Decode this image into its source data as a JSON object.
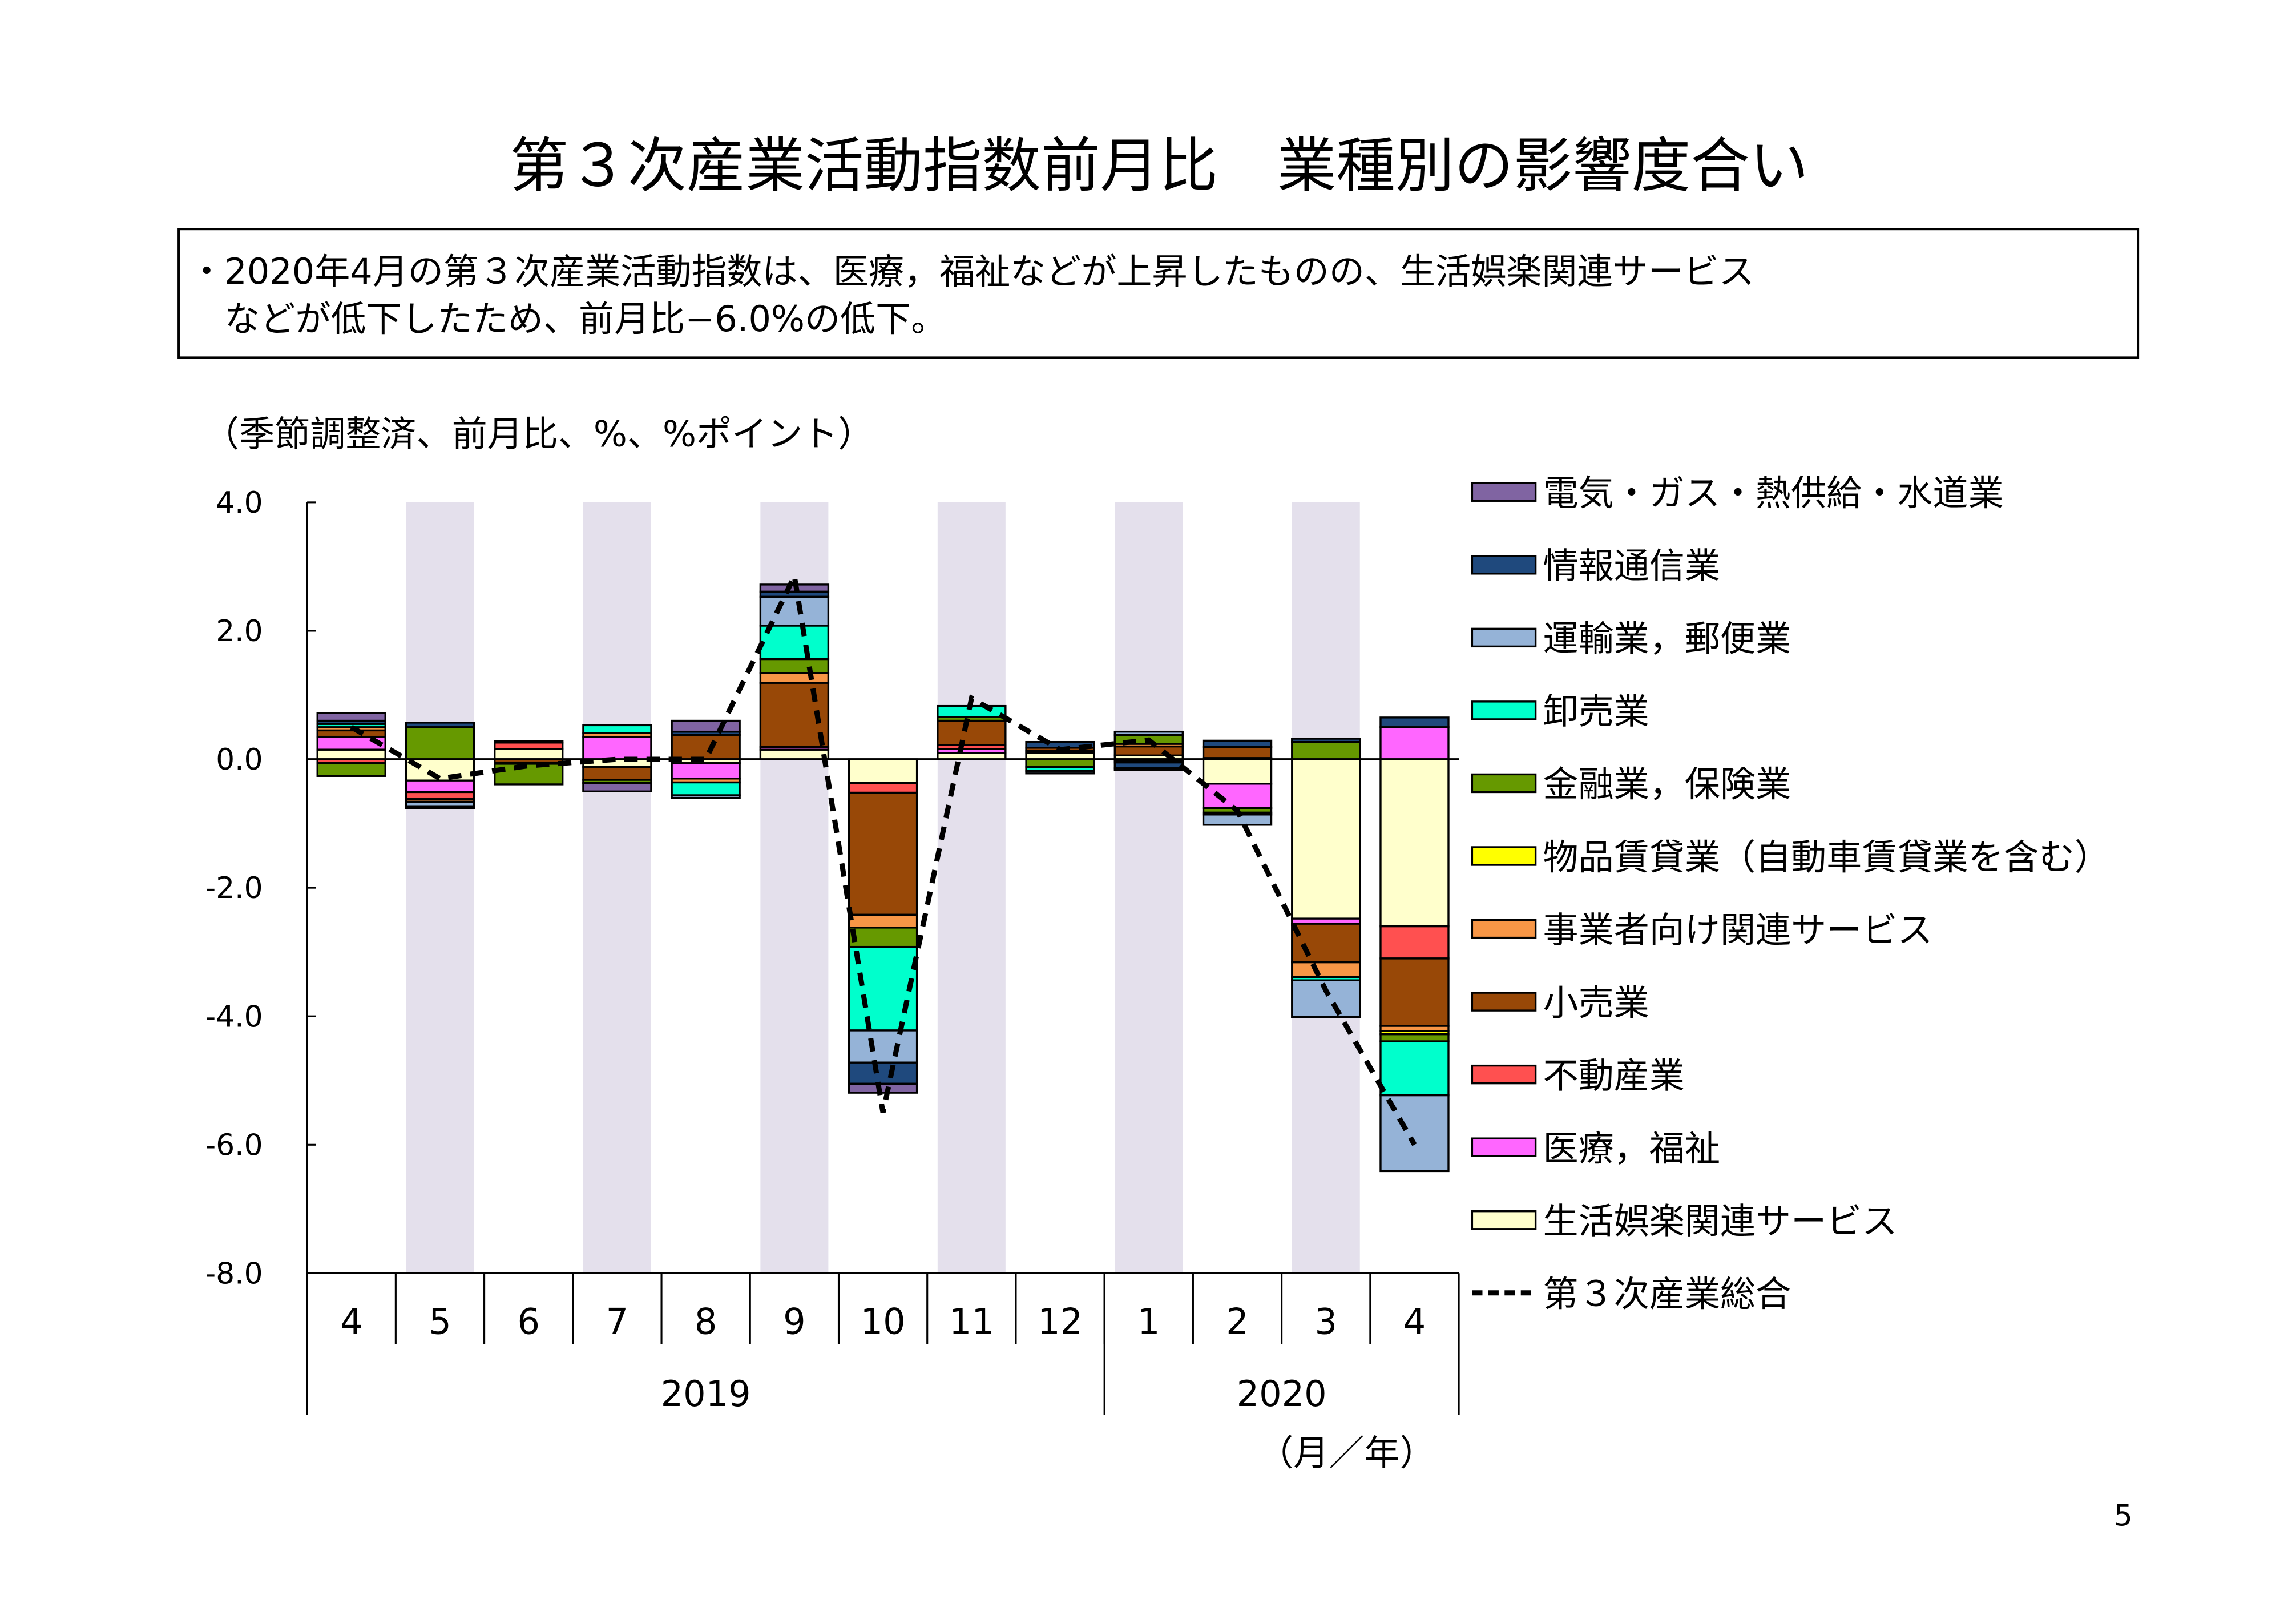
{
  "page": {
    "title": "第３次産業活動指数前月比　業種別の影響度合い",
    "summary_line1": "・2020年4月の第３次産業活動指数は、医療，福祉などが上昇したものの、生活娯楽関連サービス",
    "summary_line2": "などが低下したため、前月比−6.0%の低下。",
    "page_number": "5"
  },
  "chart_data": {
    "type": "bar",
    "stacked": true,
    "units_label": "（季節調整済、前月比、%、%ポイント）",
    "xlabel": "（月／年）",
    "ylim": [
      -8,
      4
    ],
    "yticks": [
      "4.0",
      "2.0",
      "0.0",
      "-2.0",
      "-4.0",
      "-6.0",
      "-8.0"
    ],
    "ytick_values": [
      4,
      2,
      0,
      -2,
      -4,
      -6,
      -8
    ],
    "categories": [
      "4",
      "5",
      "6",
      "7",
      "8",
      "9",
      "10",
      "11",
      "12",
      "1",
      "2",
      "3",
      "4"
    ],
    "years": [
      {
        "label": "2019",
        "span": 9
      },
      {
        "label": "2020",
        "span": 4
      }
    ],
    "shaded_categories": [
      1,
      3,
      5,
      7,
      9,
      11
    ],
    "shade_color": "#e4e0ec",
    "series": [
      {
        "name": "電気・ガス・熱供給・水道業",
        "color": "#8064a2",
        "values": [
          0.12,
          -0.03,
          0,
          -0.13,
          0.17,
          0.11,
          -0.14,
          0,
          0,
          -0.03,
          0,
          0,
          0
        ]
      },
      {
        "name": "情報通信業",
        "color": "#1f497d",
        "values": [
          0.05,
          0.07,
          0,
          0,
          0.05,
          0.08,
          -0.33,
          0,
          0.09,
          -0.09,
          0.1,
          0.05,
          0.15
        ]
      },
      {
        "name": "運輸業，郵便業",
        "color": "#95b3d7",
        "values": [
          0,
          -0.07,
          0,
          0,
          -0.04,
          0.45,
          -0.5,
          0,
          -0.04,
          0.05,
          -0.16,
          -0.57,
          -1.18
        ]
      },
      {
        "name": "卸売業",
        "color": "#00ffcc",
        "values": [
          0.05,
          0,
          0.02,
          0.12,
          -0.2,
          0.52,
          -1.3,
          0.17,
          -0.06,
          -0.02,
          -0.03,
          -0.05,
          -0.84
        ]
      },
      {
        "name": "金融業，保険業",
        "color": "#669900",
        "values": [
          -0.2,
          0.5,
          -0.32,
          -0.05,
          0,
          0.22,
          -0.3,
          0.06,
          -0.12,
          0.14,
          -0.07,
          0.27,
          -0.11
        ]
      },
      {
        "name": "物品賃貸業（自動車賃貸業を含む）",
        "color": "#ffff00",
        "values": [
          0,
          0,
          0,
          0,
          0,
          0,
          0,
          0,
          0,
          0,
          0,
          0,
          -0.05
        ]
      },
      {
        "name": "事業者向け関連サービス",
        "color": "#f79646",
        "values": [
          0.05,
          -0.04,
          -0.02,
          0.06,
          -0.06,
          0.15,
          -0.2,
          0,
          0,
          0.04,
          0,
          -0.23,
          -0.08
        ]
      },
      {
        "name": "小売業",
        "color": "#984807",
        "values": [
          0.1,
          0,
          -0.05,
          -0.2,
          0.38,
          1.0,
          -1.9,
          0.38,
          0.05,
          0.14,
          0.17,
          -0.6,
          -1.05
        ]
      },
      {
        "name": "不動産業",
        "color": "#ff5050",
        "values": [
          -0.06,
          -0.11,
          0.1,
          0,
          0,
          0,
          -0.15,
          0.06,
          0,
          0,
          0.02,
          0,
          -0.5
        ]
      },
      {
        "name": "医療，福祉",
        "color": "#ff66ff",
        "values": [
          0.2,
          -0.18,
          0,
          0.35,
          -0.24,
          0.04,
          0,
          0.06,
          0.03,
          -0.03,
          -0.38,
          -0.08,
          0.5
        ]
      },
      {
        "name": "生活娯楽関連サービス",
        "color": "#ffffcc",
        "values": [
          0.15,
          -0.33,
          0.16,
          -0.12,
          -0.06,
          0.15,
          -0.37,
          0.1,
          0.1,
          0.06,
          -0.38,
          -2.48,
          -2.6
        ]
      }
    ],
    "line": {
      "name": "第３次産業総合",
      "color": "#000000",
      "values": [
        0.5,
        -0.3,
        -0.1,
        0.0,
        0.0,
        2.85,
        -5.5,
        0.95,
        0.15,
        0.3,
        -0.8,
        -3.6,
        -6.0
      ]
    }
  }
}
